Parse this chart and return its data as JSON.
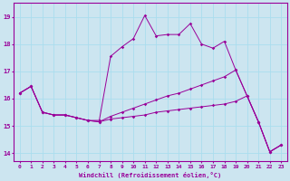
{
  "background_color": "#cce5f0",
  "line_color": "#990099",
  "grid_color": "#aaddee",
  "xlabel": "Windchill (Refroidissement éolien,°C)",
  "ylabel_ticks": [
    14,
    15,
    16,
    17,
    18,
    19
  ],
  "xlim": [
    -0.5,
    23.5
  ],
  "ylim": [
    13.7,
    19.5
  ],
  "xticks": [
    0,
    1,
    2,
    3,
    4,
    5,
    6,
    7,
    8,
    9,
    10,
    11,
    12,
    13,
    14,
    15,
    16,
    17,
    18,
    19,
    20,
    21,
    22,
    23
  ],
  "series": {
    "line1": {
      "x": [
        0,
        1,
        2,
        3,
        4,
        5,
        6,
        7,
        8,
        9,
        10,
        11,
        12,
        13,
        14,
        15,
        16,
        17,
        18,
        19,
        20,
        21,
        22,
        23
      ],
      "y": [
        16.2,
        16.45,
        15.5,
        15.4,
        15.4,
        15.3,
        15.2,
        15.2,
        17.55,
        17.9,
        18.2,
        19.05,
        18.3,
        18.35,
        18.35,
        18.75,
        18.0,
        17.85,
        18.1,
        17.05,
        16.1,
        15.15,
        14.05,
        14.3
      ]
    },
    "line2": {
      "x": [
        0,
        1,
        2,
        3,
        4,
        5,
        6,
        7,
        8,
        9,
        10,
        11,
        12,
        13,
        14,
        15,
        16,
        17,
        18,
        19,
        20,
        21,
        22,
        23
      ],
      "y": [
        16.2,
        16.45,
        15.5,
        15.4,
        15.4,
        15.3,
        15.2,
        15.15,
        15.35,
        15.5,
        15.65,
        15.8,
        15.95,
        16.1,
        16.2,
        16.35,
        16.5,
        16.65,
        16.8,
        17.05,
        16.1,
        15.15,
        14.05,
        14.3
      ]
    },
    "line3": {
      "x": [
        0,
        1,
        2,
        3,
        4,
        5,
        6,
        7,
        8,
        9,
        10,
        11,
        12,
        13,
        14,
        15,
        16,
        17,
        18,
        19,
        20,
        21,
        22,
        23
      ],
      "y": [
        16.2,
        16.45,
        15.5,
        15.4,
        15.4,
        15.3,
        15.2,
        15.15,
        15.25,
        15.3,
        15.35,
        15.4,
        15.5,
        15.55,
        15.6,
        15.65,
        15.7,
        15.75,
        15.8,
        15.9,
        16.1,
        15.15,
        14.05,
        14.3
      ]
    }
  }
}
